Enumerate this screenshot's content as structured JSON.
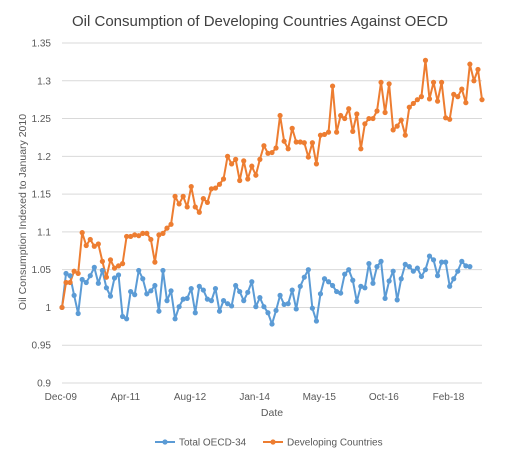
{
  "chart_data": {
    "type": "line",
    "title": "Oil Consumption  of Developing Countries Against OECD",
    "xlabel": "Date",
    "ylabel": "Oil Consumption Indexed to January 2010",
    "ylim": [
      0.9,
      1.35
    ],
    "y_ticks": [
      "0.9",
      "0.95",
      "1",
      "1.05",
      "1.1",
      "1.15",
      "1.2",
      "1.25",
      "1.3",
      "1.35"
    ],
    "x_ticks": [
      "Dec-09",
      "Apr-11",
      "Aug-12",
      "Jan-14",
      "May-15",
      "Oct-16",
      "Feb-18"
    ],
    "x_start": "2010-01",
    "grid": "horizontal",
    "legend_position": "bottom",
    "colors": {
      "Total OECD-34": "#5B9BD5",
      "Developing Countries": "#ED7D31"
    },
    "series": [
      {
        "name": "Total OECD-34",
        "values": [
          1.0,
          1.045,
          1.042,
          1.016,
          0.992,
          1.037,
          1.033,
          1.042,
          1.053,
          1.032,
          1.049,
          1.026,
          1.015,
          1.039,
          1.043,
          0.988,
          0.985,
          1.021,
          1.017,
          1.049,
          1.038,
          1.018,
          1.022,
          1.029,
          0.995,
          1.049,
          1.009,
          1.022,
          0.985,
          1.001,
          1.011,
          1.012,
          1.025,
          0.993,
          1.028,
          1.023,
          1.011,
          1.009,
          1.025,
          0.995,
          1.009,
          1.005,
          1.002,
          1.029,
          1.021,
          1.009,
          1.02,
          1.034,
          1.001,
          1.013,
          1.001,
          0.993,
          0.978,
          0.996,
          1.016,
          1.004,
          1.005,
          1.023,
          0.998,
          1.028,
          1.04,
          1.05,
          0.999,
          0.982,
          1.018,
          1.038,
          1.034,
          1.029,
          1.021,
          1.019,
          1.044,
          1.05,
          1.036,
          1.008,
          1.028,
          1.026,
          1.058,
          1.032,
          1.054,
          1.061,
          1.012,
          1.035,
          1.048,
          1.01,
          1.038,
          1.057,
          1.054,
          1.048,
          1.052,
          1.041,
          1.05,
          1.068,
          1.063,
          1.042,
          1.06,
          1.06,
          1.028,
          1.038,
          1.048,
          1.061,
          1.055,
          1.054
        ]
      },
      {
        "name": "Developing Countries",
        "values": [
          1.0,
          1.033,
          1.033,
          1.048,
          1.045,
          1.099,
          1.082,
          1.09,
          1.081,
          1.084,
          1.061,
          1.04,
          1.063,
          1.052,
          1.055,
          1.058,
          1.094,
          1.094,
          1.096,
          1.095,
          1.098,
          1.098,
          1.09,
          1.06,
          1.096,
          1.098,
          1.105,
          1.11,
          1.147,
          1.137,
          1.147,
          1.133,
          1.16,
          1.133,
          1.126,
          1.144,
          1.139,
          1.157,
          1.158,
          1.163,
          1.17,
          1.2,
          1.19,
          1.196,
          1.168,
          1.194,
          1.17,
          1.187,
          1.175,
          1.196,
          1.214,
          1.204,
          1.205,
          1.211,
          1.254,
          1.22,
          1.21,
          1.237,
          1.219,
          1.219,
          1.218,
          1.199,
          1.218,
          1.19,
          1.228,
          1.229,
          1.232,
          1.293,
          1.232,
          1.254,
          1.25,
          1.263,
          1.233,
          1.256,
          1.21,
          1.243,
          1.25,
          1.25,
          1.26,
          1.298,
          1.258,
          1.296,
          1.235,
          1.24,
          1.248,
          1.228,
          1.265,
          1.27,
          1.275,
          1.279,
          1.327,
          1.276,
          1.298,
          1.273,
          1.298,
          1.251,
          1.249,
          1.282,
          1.279,
          1.289,
          1.271,
          1.322,
          1.3,
          1.315,
          1.275
        ]
      }
    ]
  }
}
